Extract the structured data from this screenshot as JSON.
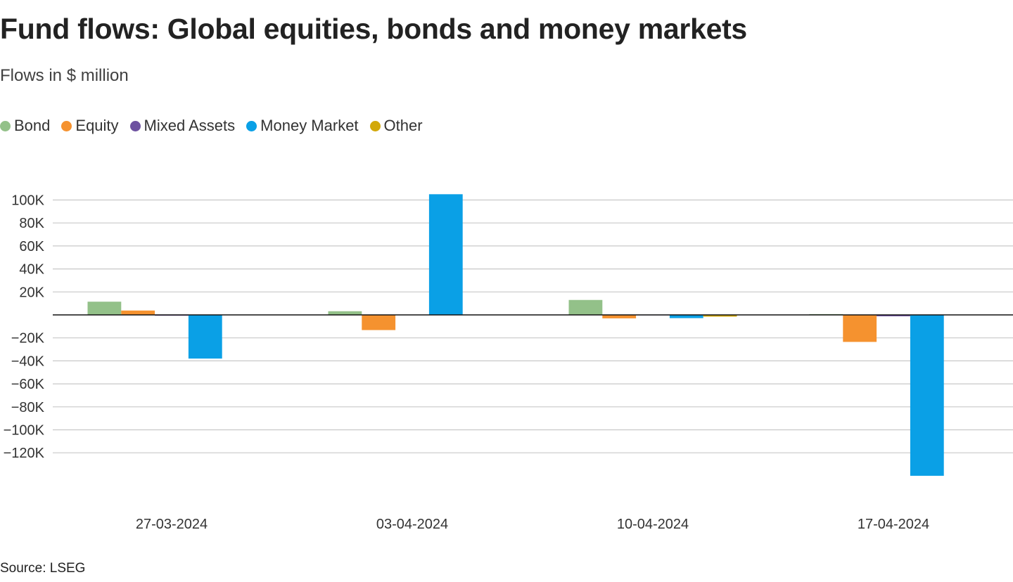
{
  "header": {
    "title": "Fund flows: Global equities, bonds and money markets",
    "subtitle": "Flows in $ million"
  },
  "footer": {
    "source": "Source: LSEG"
  },
  "colors": {
    "Bond": "#93c189",
    "Equity": "#f5922f",
    "Mixed Assets": "#6d51a0",
    "Money Market": "#0aa0e6",
    "Other": "#d2a80a"
  },
  "chart_data": {
    "type": "bar",
    "categories": [
      "27-03-2024",
      "03-04-2024",
      "10-04-2024",
      "17-04-2024"
    ],
    "series": [
      {
        "name": "Bond",
        "values": [
          11500,
          3200,
          13000,
          700
        ]
      },
      {
        "name": "Equity",
        "values": [
          3800,
          -13200,
          -3000,
          -23500
        ]
      },
      {
        "name": "Mixed Assets",
        "values": [
          -700,
          -300,
          -400,
          -1200
        ]
      },
      {
        "name": "Money Market",
        "values": [
          -38000,
          105000,
          -2800,
          -140000
        ]
      },
      {
        "name": "Other",
        "values": [
          0,
          0,
          -1500,
          0
        ]
      }
    ],
    "yticks": [
      100000,
      80000,
      60000,
      40000,
      20000,
      -20000,
      -40000,
      -60000,
      -80000,
      -100000,
      -120000
    ],
    "ytick_labels": [
      "100K",
      "80K",
      "60K",
      "40K",
      "20K",
      "−20K",
      "−40K",
      "−60K",
      "−80K",
      "−100K",
      "−120K"
    ],
    "ylim": [
      -140000,
      105000
    ],
    "grid": true,
    "legend_position": "top-left"
  }
}
